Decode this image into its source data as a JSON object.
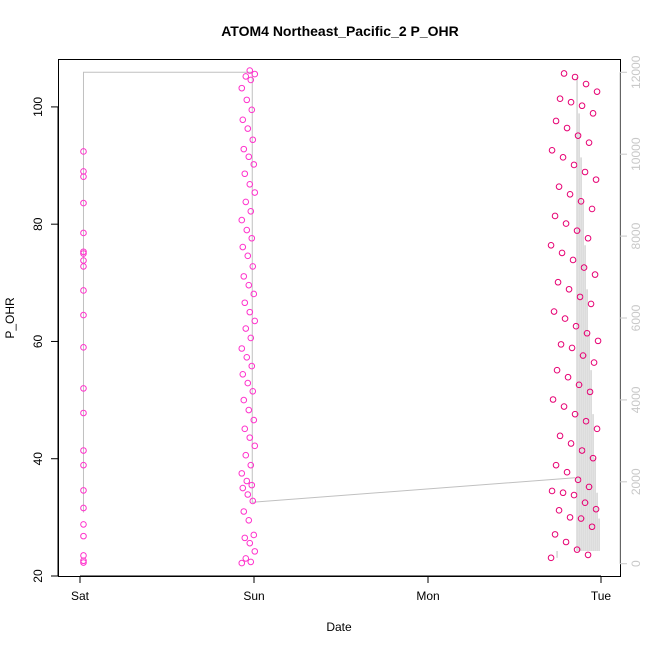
{
  "chart_data": {
    "type": "scatter",
    "title": "ATOM4 Northeast_Pacific_2 P_OHR",
    "xlabel": "Date",
    "ylabel": "P_OHR",
    "x_ticks": [
      "Sat",
      "Sun",
      "Mon",
      "Tue"
    ],
    "y_ticks": [
      20,
      40,
      60,
      80,
      100
    ],
    "ylim": [
      20,
      108
    ],
    "y2_ticks": [
      0,
      2000,
      4000,
      6000,
      8000,
      10000,
      12000
    ],
    "y2lim": [
      -300,
      12300
    ],
    "grid": false,
    "colors": {
      "points_early": "#ff33cc",
      "points_late": "#e60073",
      "line": "#c0c0c0",
      "right_axis": "#c8c8c8"
    },
    "series": [
      {
        "label_day": "Sat",
        "x_center": 0.02,
        "values": [
          22.3,
          22.6,
          23.5,
          26.8,
          28.8,
          31.6,
          34.6,
          38.9,
          41.4,
          47.8,
          52.0,
          59.0,
          64.5,
          68.7,
          72.8,
          73.8,
          75.0,
          75.3,
          78.5,
          83.6,
          88.1,
          89.0,
          92.4
        ]
      },
      {
        "label_day": "Sun",
        "x_center": 0.97,
        "values": [
          22.2,
          22.4,
          23.0,
          24.2,
          25.6,
          26.5,
          27.0,
          29.5,
          31.0,
          32.8,
          33.9,
          35.0,
          35.5,
          36.2,
          37.5,
          38.9,
          40.6,
          42.2,
          43.6,
          45.1,
          46.6,
          48.3,
          50.0,
          51.5,
          52.9,
          54.4,
          55.8,
          57.3,
          58.8,
          60.6,
          62.2,
          63.5,
          65.0,
          66.6,
          68.1,
          69.6,
          71.1,
          72.8,
          74.6,
          76.1,
          77.6,
          79.0,
          80.7,
          82.2,
          83.8,
          85.4,
          86.8,
          88.6,
          90.2,
          91.5,
          92.8,
          94.4,
          96.3,
          97.8,
          99.5,
          101.2,
          103.2,
          104.6,
          105.2,
          105.6,
          106.2
        ]
      },
      {
        "label_day": "Tue",
        "x_center": 2.85,
        "values": [
          23.1,
          23.6,
          24.5,
          25.8,
          27.1,
          28.4,
          29.8,
          30.0,
          31.2,
          31.4,
          32.5,
          33.8,
          34.2,
          34.5,
          35.2,
          36.4,
          37.7,
          38.9,
          40.1,
          41.4,
          42.6,
          43.9,
          45.1,
          46.4,
          47.6,
          48.9,
          50.1,
          51.4,
          52.6,
          53.9,
          55.1,
          56.4,
          57.6,
          58.9,
          59.5,
          60.1,
          61.4,
          62.6,
          63.9,
          65.1,
          66.4,
          67.6,
          68.9,
          70.1,
          71.4,
          72.6,
          73.9,
          75.1,
          76.4,
          77.6,
          78.9,
          80.1,
          81.4,
          82.6,
          83.9,
          85.1,
          86.4,
          87.6,
          88.9,
          90.1,
          91.4,
          92.6,
          93.9,
          95.1,
          96.4,
          97.6,
          98.9,
          100.2,
          100.8,
          101.4,
          102.6,
          103.9,
          105.1,
          105.7
        ]
      }
    ],
    "line_series_right_axis": {
      "points": [
        [
          0.02,
          1250
        ],
        [
          0.02,
          12000
        ],
        [
          0.99,
          12000
        ],
        [
          0.99,
          1500
        ],
        [
          2.85,
          2100
        ]
      ]
    }
  }
}
